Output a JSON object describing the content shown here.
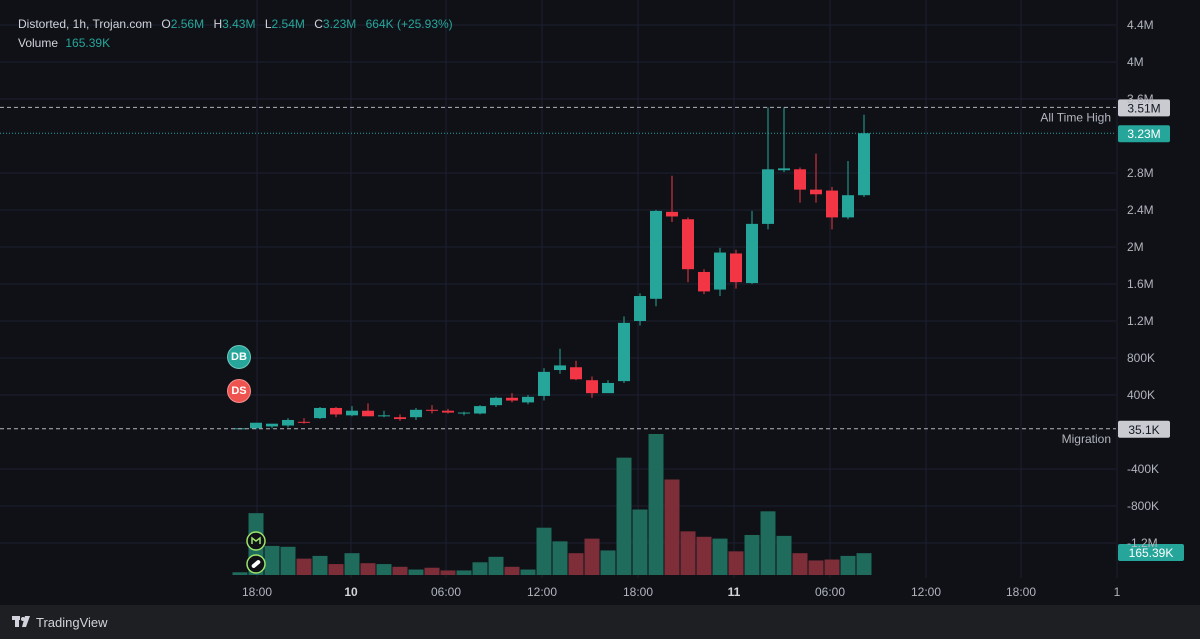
{
  "legend": {
    "symbol": "Distorted, 1h, Trojan.com",
    "o_label": "O",
    "o_value": "2.56M",
    "h_label": "H",
    "h_value": "3.43M",
    "l_label": "L",
    "l_value": "2.54M",
    "c_label": "C",
    "c_value": "3.23M",
    "change": "664K (+25.93%)",
    "volume_label": "Volume",
    "volume_value": "165.39K"
  },
  "markers": [
    {
      "text": "DB",
      "color": "#26a69a"
    },
    {
      "text": "DS",
      "color": "#ef5350"
    }
  ],
  "footer": {
    "brand": "TradingView"
  },
  "colors": {
    "up": "#26a69a",
    "down": "#f23645",
    "up_vol": "#1f6b5c",
    "down_vol": "#7d2e38",
    "bg": "#131722"
  },
  "chart_data": {
    "type": "candlestick",
    "title": "Distorted, 1h, Trojan.com",
    "y_ticks": [
      "4.4M",
      "4M",
      "3.6M",
      "2.8M",
      "2.4M",
      "2M",
      "1.6M",
      "1.2M",
      "800K",
      "400K",
      "-400K",
      "-800K",
      "-1.2M"
    ],
    "x_ticks": [
      "18:00",
      "10",
      "06:00",
      "12:00",
      "18:00",
      "11",
      "06:00",
      "12:00",
      "18:00",
      "1"
    ],
    "ylim": [
      -1500000,
      4600000
    ],
    "price_lines": [
      {
        "label": "All Time High",
        "value": 3510000,
        "tag": "3.51M"
      },
      {
        "label": "",
        "value": 3230000,
        "tag": "3.23M"
      },
      {
        "label": "Migration",
        "value": 35100,
        "tag": "35.1K"
      }
    ],
    "volume_tag": "165.39K",
    "candles": [
      {
        "o": 35000,
        "h": 40000,
        "l": 30000,
        "c": 40000
      },
      {
        "o": 40000,
        "h": 100000,
        "l": 30000,
        "c": 100000
      },
      {
        "o": 60000,
        "h": 80000,
        "l": 40000,
        "c": 90000
      },
      {
        "o": 70000,
        "h": 150000,
        "l": 50000,
        "c": 130000
      },
      {
        "o": 110000,
        "h": 150000,
        "l": 90000,
        "c": 100000
      },
      {
        "o": 150000,
        "h": 270000,
        "l": 140000,
        "c": 260000
      },
      {
        "o": 260000,
        "h": 270000,
        "l": 160000,
        "c": 190000
      },
      {
        "o": 180000,
        "h": 280000,
        "l": 170000,
        "c": 230000
      },
      {
        "o": 230000,
        "h": 310000,
        "l": 170000,
        "c": 170000
      },
      {
        "o": 170000,
        "h": 230000,
        "l": 160000,
        "c": 180000
      },
      {
        "o": 160000,
        "h": 190000,
        "l": 120000,
        "c": 140000
      },
      {
        "o": 160000,
        "h": 260000,
        "l": 130000,
        "c": 240000
      },
      {
        "o": 240000,
        "h": 290000,
        "l": 200000,
        "c": 230000
      },
      {
        "o": 230000,
        "h": 250000,
        "l": 200000,
        "c": 210000
      },
      {
        "o": 200000,
        "h": 220000,
        "l": 180000,
        "c": 210000
      },
      {
        "o": 200000,
        "h": 290000,
        "l": 190000,
        "c": 280000
      },
      {
        "o": 290000,
        "h": 380000,
        "l": 270000,
        "c": 370000
      },
      {
        "o": 370000,
        "h": 420000,
        "l": 320000,
        "c": 340000
      },
      {
        "o": 320000,
        "h": 400000,
        "l": 300000,
        "c": 380000
      },
      {
        "o": 390000,
        "h": 690000,
        "l": 340000,
        "c": 650000
      },
      {
        "o": 670000,
        "h": 900000,
        "l": 630000,
        "c": 720000
      },
      {
        "o": 700000,
        "h": 770000,
        "l": 560000,
        "c": 570000
      },
      {
        "o": 560000,
        "h": 600000,
        "l": 370000,
        "c": 420000
      },
      {
        "o": 420000,
        "h": 560000,
        "l": 430000,
        "c": 530000
      },
      {
        "o": 550000,
        "h": 1250000,
        "l": 530000,
        "c": 1180000
      },
      {
        "o": 1200000,
        "h": 1500000,
        "l": 1150000,
        "c": 1470000
      },
      {
        "o": 1440000,
        "h": 2400000,
        "l": 1360000,
        "c": 2390000
      },
      {
        "o": 2380000,
        "h": 2770000,
        "l": 2270000,
        "c": 2330000
      },
      {
        "o": 2300000,
        "h": 2320000,
        "l": 1620000,
        "c": 1760000
      },
      {
        "o": 1730000,
        "h": 1760000,
        "l": 1490000,
        "c": 1520000
      },
      {
        "o": 1540000,
        "h": 1990000,
        "l": 1470000,
        "c": 1940000
      },
      {
        "o": 1930000,
        "h": 1970000,
        "l": 1550000,
        "c": 1620000
      },
      {
        "o": 1610000,
        "h": 2390000,
        "l": 1600000,
        "c": 2250000
      },
      {
        "o": 2250000,
        "h": 3510000,
        "l": 2190000,
        "c": 2840000
      },
      {
        "o": 2830000,
        "h": 3510000,
        "l": 2810000,
        "c": 2850000
      },
      {
        "o": 2840000,
        "h": 2860000,
        "l": 2480000,
        "c": 2620000
      },
      {
        "o": 2620000,
        "h": 3010000,
        "l": 2480000,
        "c": 2570000
      },
      {
        "o": 2610000,
        "h": 2650000,
        "l": 2190000,
        "c": 2320000
      },
      {
        "o": 2320000,
        "h": 2930000,
        "l": 2300000,
        "c": 2560000
      },
      {
        "o": 2560000,
        "h": 3430000,
        "l": 2540000,
        "c": 3230000
      }
    ],
    "volumes": [
      3,
      68,
      32,
      31,
      18,
      21,
      12,
      24,
      13,
      12,
      9,
      6,
      8,
      5,
      5,
      14,
      20,
      9,
      6,
      52,
      37,
      24,
      40,
      27,
      129,
      72,
      155,
      105,
      48,
      42,
      40,
      26,
      44,
      70,
      43,
      24,
      16,
      17,
      21,
      24
    ]
  }
}
